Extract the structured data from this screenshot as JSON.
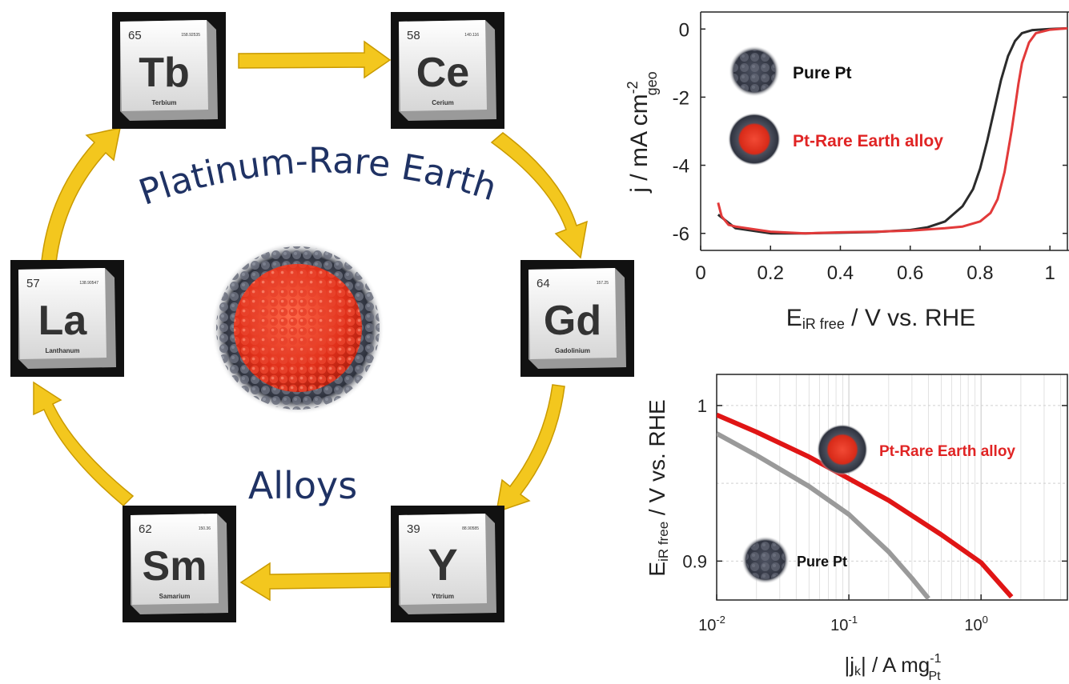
{
  "title_line1": "Platinum-Rare Earth",
  "title_line2": "Alloys",
  "elements": [
    {
      "number": "65",
      "symbol": "Tb",
      "name": "Terbium",
      "weight": "158.92535"
    },
    {
      "number": "58",
      "symbol": "Ce",
      "name": "Cerium",
      "weight": "140.116"
    },
    {
      "number": "64",
      "symbol": "Gd",
      "name": "Gadolinium",
      "weight": "157.25"
    },
    {
      "number": "39",
      "symbol": "Y",
      "name": "Yttrium",
      "weight": "88.90585"
    },
    {
      "number": "62",
      "symbol": "Sm",
      "name": "Samarium",
      "weight": "150.36"
    },
    {
      "number": "57",
      "symbol": "La",
      "name": "Lanthanum",
      "weight": "138.90547"
    }
  ],
  "colors": {
    "pt": "#3a3f4c",
    "alloy": "#e63a22",
    "arrow": "#f3c71e",
    "title": "#1f3264",
    "curve_pt_top": "#2b2b2b",
    "curve_alloy_top": "#e23a3a",
    "curve_pt_bottom": "#9a9a9a",
    "curve_alloy_bottom": "#e01515"
  },
  "chart_data": [
    {
      "type": "line",
      "xlabel_main": "E",
      "xlabel_sub": "iR free",
      "xlabel_rest": " / V vs. RHE",
      "ylabel_main": "j / mA cm",
      "ylabel_sup": "-2",
      "ylabel_sub": "geo",
      "xlim": [
        0,
        1.05
      ],
      "ylim": [
        -6.5,
        0.5
      ],
      "x_ticks": [
        0,
        0.2,
        0.4,
        0.6,
        0.8,
        1
      ],
      "x_tick_labels": [
        "0",
        "0.2",
        "0.4",
        "0.6",
        "0.8",
        "1"
      ],
      "y_ticks": [
        0,
        -2,
        -4,
        -6
      ],
      "y_tick_labels": [
        "0",
        "-2",
        "-4",
        "-6"
      ],
      "legend": [
        "Pure Pt",
        "Pt-Rare Earth alloy"
      ],
      "series": [
        {
          "name": "Pure Pt",
          "x": [
            0.05,
            0.1,
            0.2,
            0.3,
            0.4,
            0.5,
            0.6,
            0.65,
            0.7,
            0.75,
            0.78,
            0.8,
            0.82,
            0.84,
            0.86,
            0.88,
            0.9,
            0.92,
            0.95,
            1.0,
            1.05
          ],
          "y": [
            -5.45,
            -5.85,
            -6.0,
            -6.0,
            -5.98,
            -5.96,
            -5.9,
            -5.82,
            -5.65,
            -5.2,
            -4.7,
            -4.1,
            -3.3,
            -2.4,
            -1.5,
            -0.8,
            -0.35,
            -0.12,
            -0.03,
            0.0,
            0.02
          ]
        },
        {
          "name": "Pt-Rare Earth alloy",
          "x": [
            0.05,
            0.06,
            0.08,
            0.1,
            0.2,
            0.3,
            0.4,
            0.5,
            0.6,
            0.7,
            0.75,
            0.8,
            0.83,
            0.85,
            0.87,
            0.89,
            0.9,
            0.91,
            0.92,
            0.94,
            0.96,
            1.0,
            1.05
          ],
          "y": [
            -5.1,
            -5.5,
            -5.75,
            -5.8,
            -5.95,
            -6.0,
            -5.97,
            -5.95,
            -5.92,
            -5.85,
            -5.8,
            -5.65,
            -5.4,
            -5.0,
            -4.2,
            -3.0,
            -2.3,
            -1.6,
            -1.0,
            -0.4,
            -0.12,
            -0.02,
            0.02
          ]
        }
      ]
    },
    {
      "type": "line",
      "xscale": "log",
      "xlabel_main": "|j",
      "xlabel_sub": "k",
      "xlabel_rest": "| / A mg",
      "xlabel_sup": "-1",
      "xlabel_sub2": "Pt",
      "ylabel_main": "E",
      "ylabel_sub": "iR free",
      "ylabel_rest": " / V vs. RHE",
      "xlim": [
        0.01,
        4.5
      ],
      "ylim": [
        0.875,
        1.02
      ],
      "x_ticks": [
        0.01,
        0.1,
        1
      ],
      "x_tick_base": [
        "10",
        "10",
        "10"
      ],
      "x_tick_exp": [
        "-2",
        "-1",
        "0"
      ],
      "y_ticks": [
        1.0,
        0.9
      ],
      "y_tick_labels": [
        "1",
        "0.9"
      ],
      "grid": true,
      "legend": [
        "Pt-Rare Earth alloy",
        "Pure Pt"
      ],
      "series": [
        {
          "name": "Pt-Rare Earth alloy",
          "x": [
            0.01,
            0.02,
            0.05,
            0.1,
            0.2,
            0.5,
            1.0,
            1.7
          ],
          "y": [
            0.994,
            0.983,
            0.967,
            0.953,
            0.939,
            0.917,
            0.899,
            0.877
          ]
        },
        {
          "name": "Pure Pt",
          "x": [
            0.01,
            0.02,
            0.05,
            0.1,
            0.2,
            0.3,
            0.4
          ],
          "y": [
            0.982,
            0.968,
            0.948,
            0.93,
            0.906,
            0.889,
            0.876
          ]
        }
      ]
    }
  ]
}
